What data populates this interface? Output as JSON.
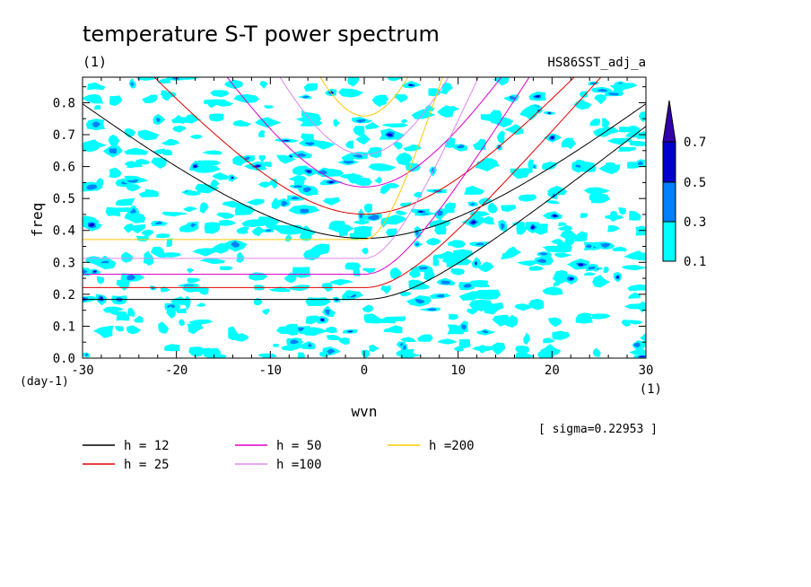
{
  "chart_data": {
    "type": "heatmap",
    "title": "temperature S-T power spectrum",
    "subtitle_left": "(1)",
    "subtitle_right": "HS86SST_adj_a",
    "xlabel": "wvn",
    "xunit": "(1)",
    "ylabel": "freq",
    "yunit": "(day-1)",
    "xlim": [
      -30,
      30
    ],
    "ylim": [
      0,
      0.88
    ],
    "xticks": [
      -30,
      -20,
      -10,
      0,
      10,
      20,
      30
    ],
    "xtick_labels": [
      "-30",
      "-20",
      "-10",
      "0",
      "10",
      "20",
      "30"
    ],
    "yticks": [
      0,
      0.1,
      0.2,
      0.3,
      0.4,
      0.5,
      0.6,
      0.7,
      0.8
    ],
    "ytick_labels": [
      "0.0",
      "0.1",
      "0.2",
      "0.3",
      "0.4",
      "0.5",
      "0.6",
      "0.7",
      "0.8"
    ],
    "sigma_note": "[ sigma=0.22953 ]",
    "colorbar": {
      "levels": [
        0.1,
        0.3,
        0.5,
        0.7
      ],
      "level_labels": [
        "0.1",
        "0.3",
        "0.5",
        "0.7"
      ],
      "colors": [
        "#00ffff",
        "#0080ff",
        "#0000cc",
        "#3300aa"
      ],
      "extend": "max"
    },
    "equivalent_depth_curves": [
      {
        "label": "h = 12",
        "h": 12,
        "color": "#000000"
      },
      {
        "label": "h = 25",
        "h": 25,
        "color": "#e00000"
      },
      {
        "label": "h = 50",
        "h": 50,
        "color": "#dd00cc"
      },
      {
        "label": "h =100",
        "h": 100,
        "color": "#dd88ee"
      },
      {
        "label": "h =200",
        "h": 200,
        "color": "#ffc800"
      }
    ],
    "curve_families": [
      "inertia-gravity (n=1)",
      "kelvin"
    ],
    "contour_field": "noisy normalized power, mostly 0.1-0.3 with scattered 0.3-0.7 peaks",
    "grid": false,
    "legend_position": "bottom-left"
  }
}
